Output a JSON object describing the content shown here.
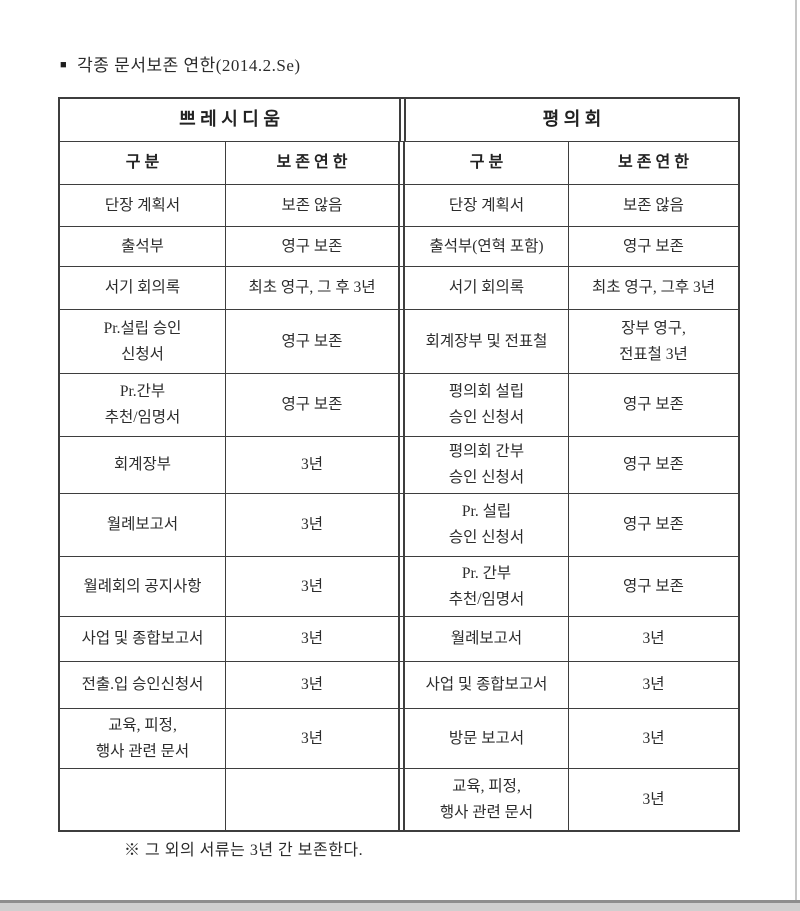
{
  "page": {
    "bullet": "■",
    "title": "각종 문서보존 연한(2014.2.Se)",
    "footnote": "※ 그 외의 서류는 3년 간 보존한다."
  },
  "table": {
    "sections": [
      {
        "title": "쁘 레 시 디 움",
        "col_item": "구 분",
        "col_period": "보 존 연 한"
      },
      {
        "title": "평 의 회",
        "col_item": "구 분",
        "col_period": "보 존 연 한"
      }
    ],
    "rows": [
      {
        "l_item": "단장 계획서",
        "l_period": "보존 않음",
        "r_item": "단장 계획서",
        "r_period": "보존 않음"
      },
      {
        "l_item": "출석부",
        "l_period": "영구 보존",
        "r_item": "출석부(연혁 포함)",
        "r_period": "영구 보존"
      },
      {
        "l_item": "서기 회의록",
        "l_period": "최초 영구, 그 후 3년",
        "r_item": "서기 회의록",
        "r_period": "최초 영구, 그후 3년"
      },
      {
        "l_item": "Pr.설립 승인\n신청서",
        "l_period": "영구 보존",
        "r_item": "회계장부 및 전표철",
        "r_period": "장부 영구,\n전표철 3년"
      },
      {
        "l_item": "Pr.간부\n추천/임명서",
        "l_period": "영구 보존",
        "r_item": "평의회 설립\n승인 신청서",
        "r_period": "영구 보존"
      },
      {
        "l_item": "회계장부",
        "l_period": "3년",
        "r_item": "평의회 간부\n승인 신청서",
        "r_period": "영구 보존"
      },
      {
        "l_item": "월례보고서",
        "l_period": "3년",
        "r_item": "Pr. 설립\n승인 신청서",
        "r_period": "영구 보존"
      },
      {
        "l_item": "월례회의 공지사항",
        "l_period": "3년",
        "r_item": "Pr. 간부\n추천/임명서",
        "r_period": "영구 보존"
      },
      {
        "l_item": "사업 및 종합보고서",
        "l_period": "3년",
        "r_item": "월례보고서",
        "r_period": "3년"
      },
      {
        "l_item": "전출.입 승인신청서",
        "l_period": "3년",
        "r_item": "사업 및 종합보고서",
        "r_period": "3년"
      },
      {
        "l_item": "교육, 피정,\n행사 관련 문서",
        "l_period": "3년",
        "r_item": "방문 보고서",
        "r_period": "3년"
      },
      {
        "l_item": "",
        "l_period": "",
        "r_item": "교육, 피정,\n행사 관련 문서",
        "r_period": "3년"
      }
    ]
  }
}
